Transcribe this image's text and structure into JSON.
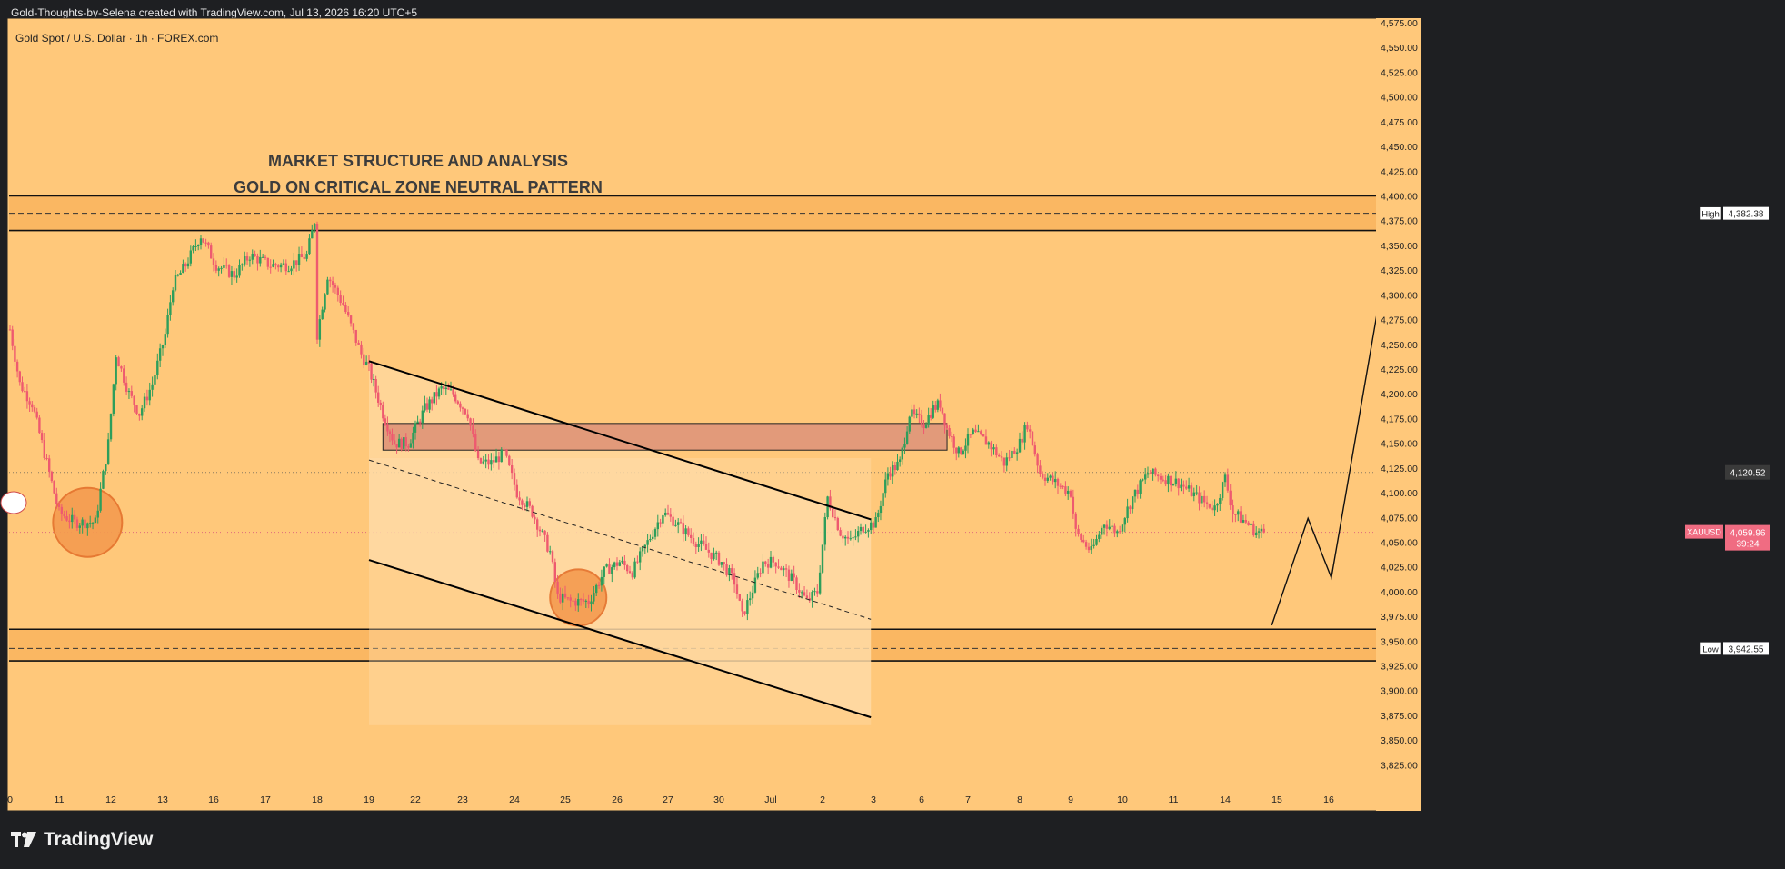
{
  "header": {
    "credit": "Gold-Thoughts-by-Selena created with TradingView.com, Jul 13, 2026 16:20 UTC+5"
  },
  "footer": {
    "brand": "TradingView"
  },
  "colors": {
    "background": "#ffc87a",
    "frame": "#1e1f22",
    "candle_up": "#2e9e5b",
    "candle_down": "#ee5a6f",
    "supply_zone": "#e29a7a",
    "channel_fill": "#ffd9a2",
    "circle_fill": "#f59b4f",
    "circle_stroke": "#e4712c",
    "price_badge": "#3a3a3a",
    "symbol_badge": "#f06c82"
  },
  "chart_data": {
    "type": "candlestick",
    "title": "Gold Spot / U.S. Dollar · 1h · FOREX.com",
    "annotation_lines": [
      "MARKET STRUCTURE AND ANALYSIS",
      "GOLD ON CRITICAL ZONE NEUTRAL PATTERN"
    ],
    "ylim": [
      3810,
      4580
    ],
    "y_ticks": [
      "4,575.00",
      "4,550.00",
      "4,525.00",
      "4,500.00",
      "4,475.00",
      "4,450.00",
      "4,425.00",
      "4,400.00",
      "4,375.00",
      "4,350.00",
      "4,325.00",
      "4,300.00",
      "4,275.00",
      "4,250.00",
      "4,225.00",
      "4,200.00",
      "4,175.00",
      "4,150.00",
      "4,125.00",
      "4,100.00",
      "4,075.00",
      "4,050.00",
      "4,025.00",
      "4,000.00",
      "3,975.00",
      "3,950.00",
      "3,925.00",
      "3,900.00",
      "3,875.00",
      "3,850.00",
      "3,825.00"
    ],
    "x_ticks": [
      {
        "label": "0",
        "i": 0
      },
      {
        "label": "11",
        "i": 1
      },
      {
        "label": "12",
        "i": 2
      },
      {
        "label": "13",
        "i": 3
      },
      {
        "label": "16",
        "i": 4
      },
      {
        "label": "17",
        "i": 5
      },
      {
        "label": "18",
        "i": 6
      },
      {
        "label": "19",
        "i": 7
      },
      {
        "label": "22",
        "i": 8
      },
      {
        "label": "23",
        "i": 9
      },
      {
        "label": "24",
        "i": 10
      },
      {
        "label": "25",
        "i": 11
      },
      {
        "label": "26",
        "i": 12
      },
      {
        "label": "27",
        "i": 13
      },
      {
        "label": "30",
        "i": 14
      },
      {
        "label": "Jul",
        "i": 15
      },
      {
        "label": "2",
        "i": 16
      },
      {
        "label": "3",
        "i": 17
      },
      {
        "label": "6",
        "i": 18
      },
      {
        "label": "7",
        "i": 19
      },
      {
        "label": "8",
        "i": 20
      },
      {
        "label": "9",
        "i": 21
      },
      {
        "label": "10",
        "i": 22
      },
      {
        "label": "11",
        "i": 23
      },
      {
        "label": "14",
        "i": 24
      },
      {
        "label": "15",
        "i": 25
      },
      {
        "label": "16",
        "i": 26
      }
    ],
    "price_path": [
      [
        0.0,
        4265
      ],
      [
        0.2,
        4210
      ],
      [
        0.45,
        4190
      ],
      [
        0.75,
        4130
      ],
      [
        1.0,
        4080
      ],
      [
        1.3,
        4070
      ],
      [
        1.7,
        4070
      ],
      [
        1.95,
        4150
      ],
      [
        2.1,
        4240
      ],
      [
        2.35,
        4200
      ],
      [
        2.55,
        4180
      ],
      [
        2.8,
        4210
      ],
      [
        3.05,
        4260
      ],
      [
        3.2,
        4310
      ],
      [
        3.45,
        4330
      ],
      [
        3.75,
        4360
      ],
      [
        4.05,
        4330
      ],
      [
        4.4,
        4320
      ],
      [
        4.7,
        4340
      ],
      [
        5.1,
        4330
      ],
      [
        5.45,
        4330
      ],
      [
        5.8,
        4340
      ],
      [
        5.95,
        4375
      ],
      [
        6.0,
        4260
      ],
      [
        6.2,
        4320
      ],
      [
        6.5,
        4290
      ],
      [
        6.85,
        4240
      ],
      [
        7.0,
        4225
      ],
      [
        7.3,
        4180
      ],
      [
        7.55,
        4150
      ],
      [
        7.85,
        4150
      ],
      [
        8.2,
        4185
      ],
      [
        8.55,
        4205
      ],
      [
        8.8,
        4200
      ],
      [
        9.1,
        4180
      ],
      [
        9.3,
        4130
      ],
      [
        9.55,
        4130
      ],
      [
        9.8,
        4140
      ],
      [
        10.05,
        4100
      ],
      [
        10.35,
        4080
      ],
      [
        10.7,
        4040
      ],
      [
        10.85,
        3995
      ],
      [
        11.1,
        3990
      ],
      [
        11.45,
        3990
      ],
      [
        11.75,
        4020
      ],
      [
        12.05,
        4030
      ],
      [
        12.3,
        4020
      ],
      [
        12.6,
        4050
      ],
      [
        12.9,
        4080
      ],
      [
        13.15,
        4070
      ],
      [
        13.45,
        4055
      ],
      [
        13.8,
        4040
      ],
      [
        14.05,
        4030
      ],
      [
        14.3,
        4010
      ],
      [
        14.45,
        3975
      ],
      [
        14.6,
        3995
      ],
      [
        14.85,
        4030
      ],
      [
        15.1,
        4030
      ],
      [
        15.45,
        4010
      ],
      [
        15.7,
        3990
      ],
      [
        15.9,
        4000
      ],
      [
        16.1,
        4095
      ],
      [
        16.35,
        4060
      ],
      [
        16.55,
        4050
      ],
      [
        16.8,
        4065
      ],
      [
        17.05,
        4070
      ],
      [
        17.3,
        4120
      ],
      [
        17.55,
        4130
      ],
      [
        17.75,
        4180
      ],
      [
        18.05,
        4170
      ],
      [
        18.25,
        4185
      ],
      [
        18.4,
        4190
      ],
      [
        18.55,
        4165
      ],
      [
        18.8,
        4140
      ],
      [
        19.1,
        4160
      ],
      [
        19.4,
        4150
      ],
      [
        19.7,
        4130
      ],
      [
        20.0,
        4150
      ],
      [
        20.15,
        4170
      ],
      [
        20.4,
        4120
      ],
      [
        20.7,
        4110
      ],
      [
        21.0,
        4100
      ],
      [
        21.1,
        4060
      ],
      [
        21.4,
        4040
      ],
      [
        21.65,
        4070
      ],
      [
        21.9,
        4060
      ],
      [
        22.2,
        4095
      ],
      [
        22.5,
        4120
      ],
      [
        22.8,
        4115
      ],
      [
        23.1,
        4110
      ],
      [
        23.35,
        4100
      ],
      [
        23.6,
        4090
      ],
      [
        23.8,
        4085
      ],
      [
        24.0,
        4115
      ],
      [
        24.15,
        4080
      ],
      [
        24.4,
        4070
      ],
      [
        24.6,
        4060
      ],
      [
        24.8,
        4060
      ]
    ],
    "levels": {
      "high": {
        "label": "High",
        "value": "4,382.38"
      },
      "low": {
        "label": "Low",
        "value": "3,942.55"
      },
      "current": {
        "label": "4,120.52",
        "value": 4120.52
      },
      "symbol": {
        "name": "XAUUSD",
        "price": "4,059.96",
        "countdown": "39:24",
        "value": 4059.96
      }
    },
    "resistance_band": [
      4365,
      4400
    ],
    "support_band": [
      3930,
      3962
    ],
    "supply_zone": {
      "from_i": 7.3,
      "to_i": 18.55,
      "low": 4143,
      "high": 4170
    },
    "channel": {
      "upper": [
        [
          7.0,
          4233
        ],
        [
          16.95,
          4073
        ]
      ],
      "mid": [
        [
          7.0,
          4133
        ],
        [
          16.95,
          3972
        ]
      ],
      "lower": [
        [
          7.0,
          4032
        ],
        [
          16.95,
          3873
        ]
      ],
      "fill_from_i": 7.0,
      "fill_to_i": 16.95
    },
    "circles": [
      {
        "i": 1.55,
        "price": 4070
      },
      {
        "i": 11.25,
        "price": 3994
      }
    ],
    "projection": [
      [
        24.9,
        3966
      ],
      [
        25.6,
        4074
      ],
      [
        26.05,
        4014
      ],
      [
        27.1,
        4332
      ]
    ]
  }
}
